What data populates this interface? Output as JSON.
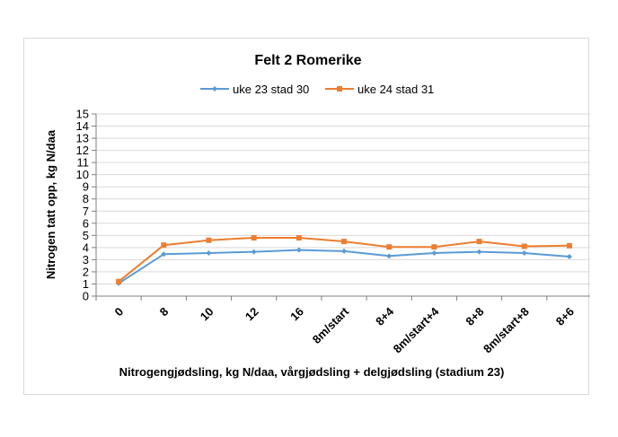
{
  "chart_data": {
    "type": "line",
    "title": "Felt 2 Romerike",
    "xlabel": "Nitrogengjødsling, kg N/daa, vårgjødsling + delgjødsling (stadium 23)",
    "ylabel": "Nitrogen tatt opp, kg N/daa",
    "categories": [
      "0",
      "8",
      "10",
      "12",
      "16",
      "8m/start",
      "8+4",
      "8m/start+4",
      "8+8",
      "8m/start+8",
      "8+6"
    ],
    "ylim": [
      0,
      15
    ],
    "yticks": [
      0,
      1,
      2,
      3,
      4,
      5,
      6,
      7,
      8,
      9,
      10,
      11,
      12,
      13,
      14,
      15
    ],
    "grid": true,
    "legend_position": "top",
    "series": [
      {
        "name": "uke 23 stad 30",
        "color": "#5b9bd5",
        "marker": "diamond",
        "values": [
          1.05,
          3.45,
          3.55,
          3.65,
          3.8,
          3.7,
          3.3,
          3.55,
          3.65,
          3.55,
          3.25
        ]
      },
      {
        "name": "uke 24 stad 31",
        "color": "#ed7d31",
        "marker": "square",
        "values": [
          1.2,
          4.2,
          4.6,
          4.8,
          4.8,
          4.5,
          4.05,
          4.05,
          4.5,
          4.1,
          4.15
        ]
      }
    ]
  }
}
